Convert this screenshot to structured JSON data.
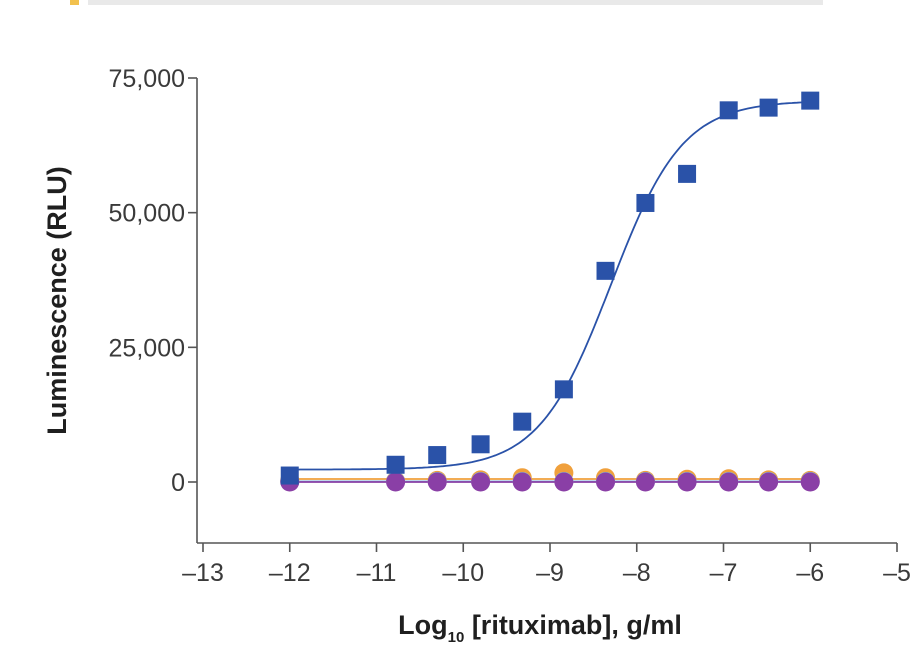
{
  "chart_data": {
    "type": "scatter",
    "title": "",
    "xlabel": "Log10 [rituximab], g/ml",
    "xlabel_parts": {
      "pre": "Log",
      "sub": "10",
      "post": " [rituximab], g/ml"
    },
    "ylabel": "Luminescence (RLU)",
    "xlim": [
      -13,
      -5
    ],
    "ylim": [
      -10000,
      75000
    ],
    "x_ticks": [
      -13,
      -12,
      -11,
      -10,
      -9,
      -8,
      -7,
      -6,
      -5
    ],
    "x_tick_labels": [
      "–13",
      "–12",
      "–11",
      "–10",
      "–9",
      "–8",
      "–7",
      "–6",
      "–5"
    ],
    "y_ticks": [
      0,
      25000,
      50000,
      75000
    ],
    "y_tick_labels": [
      "0",
      "25,000",
      "50,000",
      "75,000"
    ],
    "grid": false,
    "legend": "none",
    "x": [
      -12,
      -10.78,
      -10.3,
      -9.8,
      -9.32,
      -8.84,
      -8.36,
      -7.9,
      -7.42,
      -6.94,
      -6.48,
      -6
    ],
    "series": [
      {
        "color": "#2a52a8",
        "marker": "square",
        "fit": "sigmoid",
        "values": [
          1200,
          3200,
          5000,
          7000,
          11200,
          17200,
          39200,
          51800,
          57200,
          69000,
          69500,
          70800
        ]
      },
      {
        "color": "#f0a03c",
        "marker": "circle",
        "fit": "flat",
        "values": [
          300,
          200,
          300,
          400,
          800,
          1700,
          800,
          300,
          500,
          600,
          400,
          300
        ]
      },
      {
        "color": "#7fb3d8",
        "marker": "circle",
        "fit": "flat",
        "values": [
          100,
          100,
          100,
          100,
          100,
          100,
          100,
          100,
          100,
          100,
          100,
          100
        ]
      },
      {
        "color": "#8a3fa6",
        "marker": "circle",
        "fit": "flat",
        "values": [
          0,
          0,
          0,
          0,
          0,
          0,
          0,
          0,
          0,
          0,
          0,
          0
        ]
      }
    ]
  }
}
